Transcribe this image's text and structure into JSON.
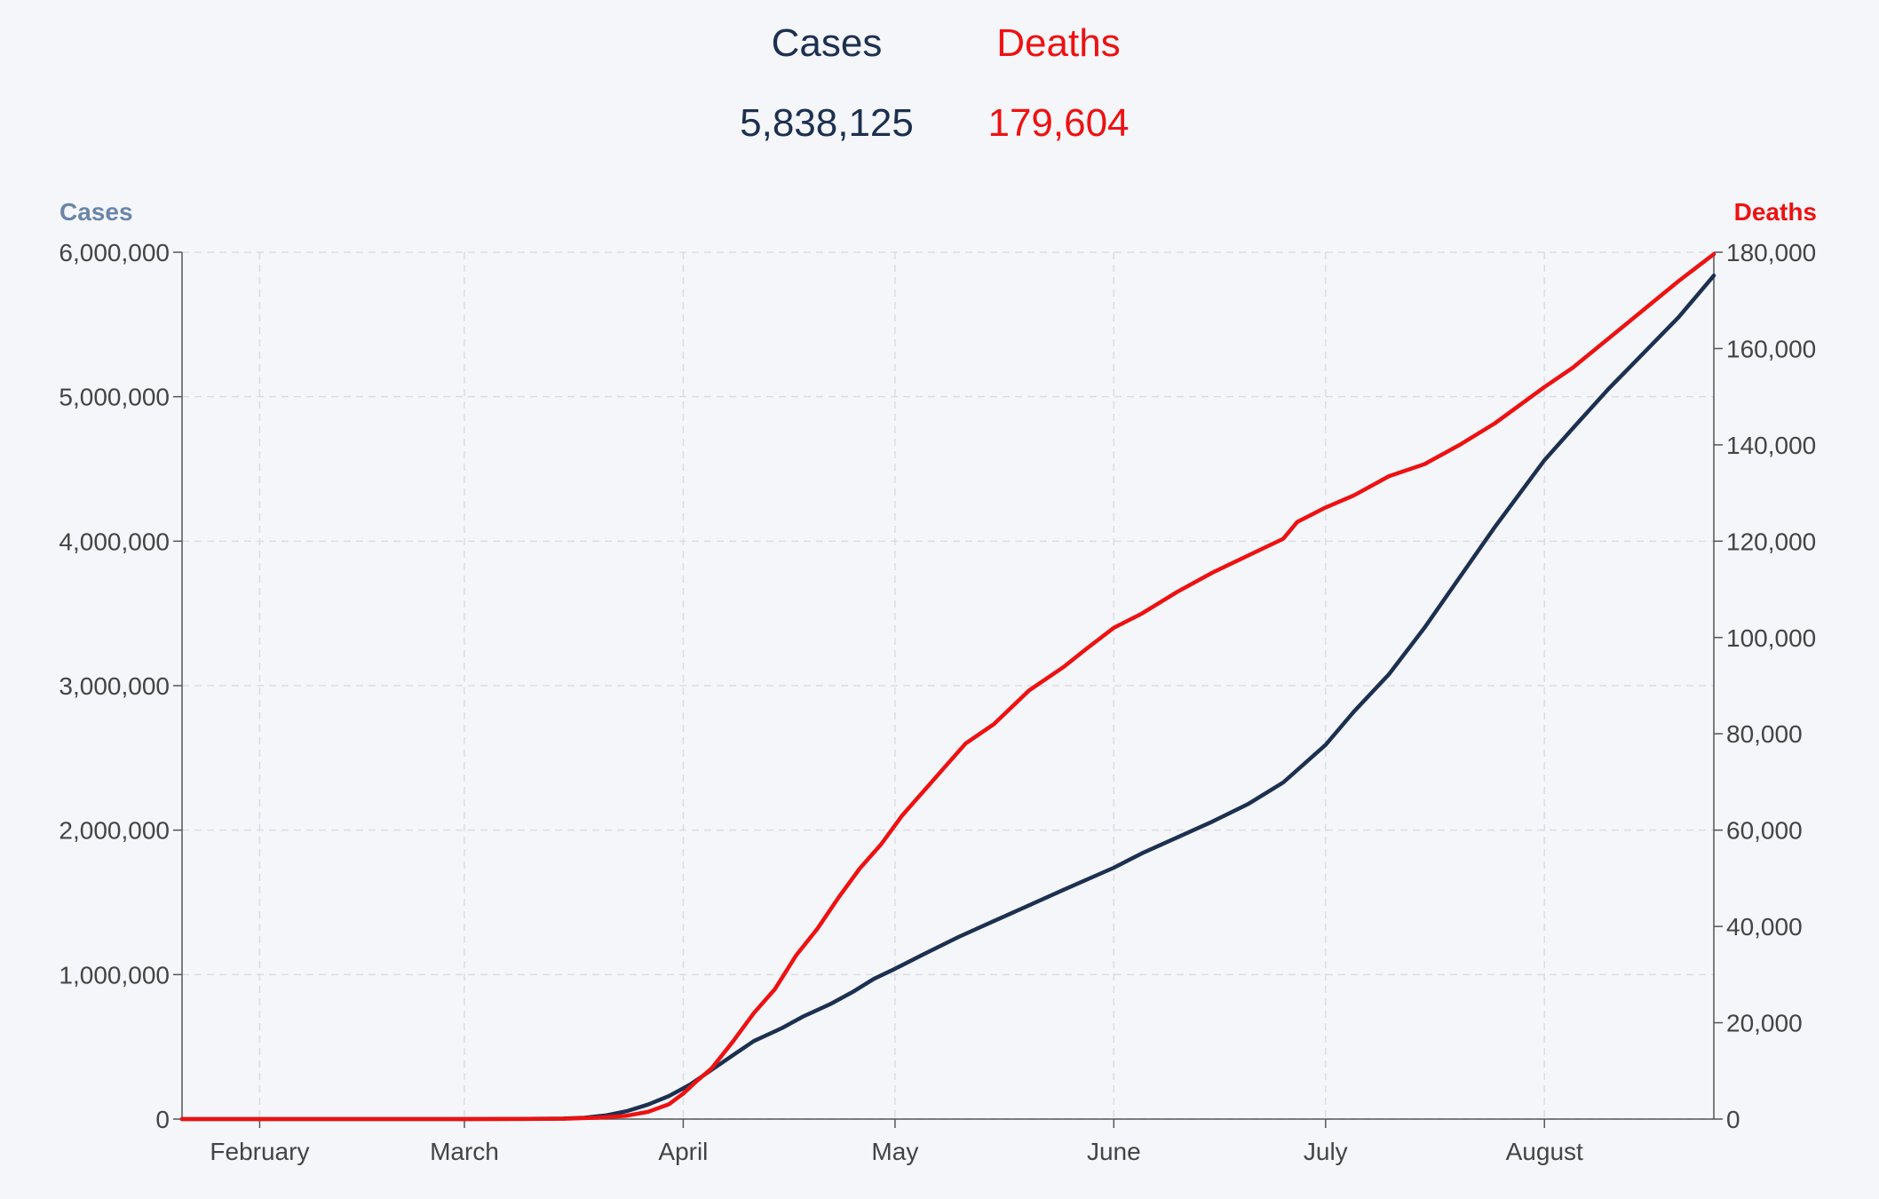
{
  "summary": {
    "cases_label": "Cases",
    "cases_value": "5,838,125",
    "deaths_label": "Deaths",
    "deaths_value": "179,604"
  },
  "colors": {
    "cases": "#1c3050",
    "deaths": "#ee1111",
    "cases_axis_title": "#6a86a8",
    "grid": "#dcdde3",
    "axis": "#555555",
    "background": "#f5f6fa"
  },
  "chart_data": {
    "type": "line",
    "grid": true,
    "left_axis": {
      "title": "Cases",
      "ylim": [
        0,
        6000000
      ],
      "ticks": [
        0,
        1000000,
        2000000,
        3000000,
        4000000,
        5000000,
        6000000
      ],
      "tick_labels": [
        "0",
        "1,000,000",
        "2,000,000",
        "3,000,000",
        "4,000,000",
        "5,000,000",
        "6,000,000"
      ]
    },
    "right_axis": {
      "title": "Deaths",
      "ylim": [
        0,
        180000
      ],
      "ticks": [
        0,
        20000,
        40000,
        60000,
        80000,
        100000,
        120000,
        140000,
        160000,
        180000
      ],
      "tick_labels": [
        "0",
        "20,000",
        "40,000",
        "60,000",
        "80,000",
        "100,000",
        "120,000",
        "140,000",
        "160,000",
        "180,000"
      ]
    },
    "xlim": [
      "2020-01-21",
      "2020-08-25"
    ],
    "x_ticks": [
      {
        "label": "February",
        "date": "2020-02-01"
      },
      {
        "label": "March",
        "date": "2020-03-01"
      },
      {
        "label": "April",
        "date": "2020-04-01"
      },
      {
        "label": "May",
        "date": "2020-05-01"
      },
      {
        "label": "June",
        "date": "2020-06-01"
      },
      {
        "label": "July",
        "date": "2020-07-01"
      },
      {
        "label": "August",
        "date": "2020-08-01"
      }
    ],
    "series": [
      {
        "name": "Cases",
        "axis": "left",
        "points": [
          [
            "2020-01-21",
            0
          ],
          [
            "2020-02-15",
            0
          ],
          [
            "2020-03-01",
            0
          ],
          [
            "2020-03-10",
            1000
          ],
          [
            "2020-03-15",
            3500
          ],
          [
            "2020-03-18",
            9000
          ],
          [
            "2020-03-21",
            25000
          ],
          [
            "2020-03-24",
            55000
          ],
          [
            "2020-03-27",
            100000
          ],
          [
            "2020-03-30",
            160000
          ],
          [
            "2020-04-02",
            240000
          ],
          [
            "2020-04-05",
            340000
          ],
          [
            "2020-04-08",
            440000
          ],
          [
            "2020-04-11",
            540000
          ],
          [
            "2020-04-15",
            630000
          ],
          [
            "2020-04-18",
            710000
          ],
          [
            "2020-04-22",
            800000
          ],
          [
            "2020-04-25",
            880000
          ],
          [
            "2020-04-28",
            970000
          ],
          [
            "2020-05-01",
            1040000
          ],
          [
            "2020-05-05",
            1140000
          ],
          [
            "2020-05-10",
            1260000
          ],
          [
            "2020-05-15",
            1370000
          ],
          [
            "2020-05-20",
            1480000
          ],
          [
            "2020-05-25",
            1590000
          ],
          [
            "2020-06-01",
            1740000
          ],
          [
            "2020-06-05",
            1840000
          ],
          [
            "2020-06-10",
            1950000
          ],
          [
            "2020-06-15",
            2060000
          ],
          [
            "2020-06-20",
            2180000
          ],
          [
            "2020-06-25",
            2330000
          ],
          [
            "2020-07-01",
            2590000
          ],
          [
            "2020-07-05",
            2820000
          ],
          [
            "2020-07-10",
            3080000
          ],
          [
            "2020-07-15",
            3400000
          ],
          [
            "2020-07-20",
            3750000
          ],
          [
            "2020-07-25",
            4100000
          ],
          [
            "2020-08-01",
            4560000
          ],
          [
            "2020-08-05",
            4780000
          ],
          [
            "2020-08-10",
            5050000
          ],
          [
            "2020-08-15",
            5300000
          ],
          [
            "2020-08-20",
            5550000
          ],
          [
            "2020-08-25",
            5838125
          ]
        ]
      },
      {
        "name": "Deaths",
        "axis": "right",
        "points": [
          [
            "2020-01-21",
            0
          ],
          [
            "2020-02-20",
            0
          ],
          [
            "2020-03-10",
            20
          ],
          [
            "2020-03-15",
            80
          ],
          [
            "2020-03-20",
            300
          ],
          [
            "2020-03-24",
            700
          ],
          [
            "2020-03-27",
            1500
          ],
          [
            "2020-03-30",
            3100
          ],
          [
            "2020-04-01",
            5300
          ],
          [
            "2020-04-03",
            8000
          ],
          [
            "2020-04-05",
            10500
          ],
          [
            "2020-04-08",
            16000
          ],
          [
            "2020-04-11",
            22000
          ],
          [
            "2020-04-14",
            27000
          ],
          [
            "2020-04-17",
            34000
          ],
          [
            "2020-04-20",
            39500
          ],
          [
            "2020-04-23",
            46000
          ],
          [
            "2020-04-26",
            52000
          ],
          [
            "2020-04-29",
            57000
          ],
          [
            "2020-05-02",
            63000
          ],
          [
            "2020-05-05",
            68000
          ],
          [
            "2020-05-08",
            73000
          ],
          [
            "2020-05-11",
            78000
          ],
          [
            "2020-05-15",
            82000
          ],
          [
            "2020-05-20",
            89000
          ],
          [
            "2020-05-25",
            94000
          ],
          [
            "2020-05-28",
            97500
          ],
          [
            "2020-06-01",
            102000
          ],
          [
            "2020-06-05",
            105000
          ],
          [
            "2020-06-10",
            109500
          ],
          [
            "2020-06-15",
            113500
          ],
          [
            "2020-06-20",
            117000
          ],
          [
            "2020-06-25",
            120500
          ],
          [
            "2020-06-27",
            124000
          ],
          [
            "2020-07-01",
            127000
          ],
          [
            "2020-07-05",
            129500
          ],
          [
            "2020-07-10",
            133500
          ],
          [
            "2020-07-15",
            136000
          ],
          [
            "2020-07-20",
            140000
          ],
          [
            "2020-07-25",
            144500
          ],
          [
            "2020-08-01",
            152000
          ],
          [
            "2020-08-05",
            156000
          ],
          [
            "2020-08-10",
            162000
          ],
          [
            "2020-08-15",
            168000
          ],
          [
            "2020-08-20",
            174000
          ],
          [
            "2020-08-25",
            179604
          ]
        ]
      }
    ]
  }
}
